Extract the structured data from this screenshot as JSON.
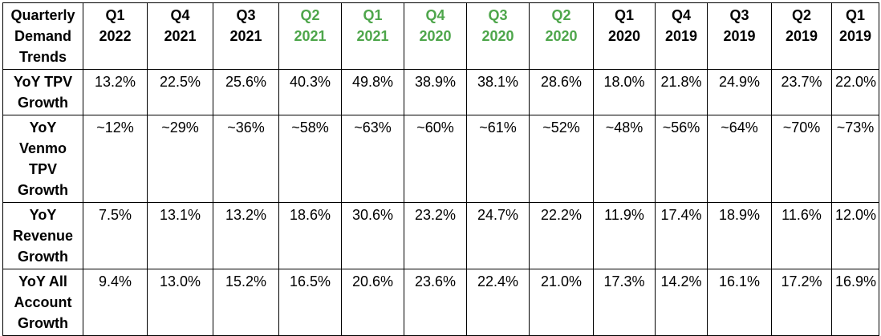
{
  "table": {
    "corner_label": "Quarterly\nDemand\nTrends",
    "columns": [
      {
        "label": "Q1\n2022",
        "highlight": false
      },
      {
        "label": "Q4\n2021",
        "highlight": false
      },
      {
        "label": "Q3\n2021",
        "highlight": false
      },
      {
        "label": "Q2\n2021",
        "highlight": true
      },
      {
        "label": "Q1\n2021",
        "highlight": true
      },
      {
        "label": "Q4\n2020",
        "highlight": true
      },
      {
        "label": "Q3\n2020",
        "highlight": true
      },
      {
        "label": "Q2\n2020",
        "highlight": true
      },
      {
        "label": "Q1\n2020",
        "highlight": false
      },
      {
        "label": "Q4\n2019",
        "highlight": false
      },
      {
        "label": "Q3\n2019",
        "highlight": false
      },
      {
        "label": "Q2\n2019",
        "highlight": false
      },
      {
        "label": "Q1\n2019",
        "highlight": false
      }
    ],
    "highlight_color": "#4ea64b",
    "rows": [
      {
        "label": "YoY TPV\nGrowth",
        "values": [
          "13.2%",
          "22.5%",
          "25.6%",
          "40.3%",
          "49.8%",
          "38.9%",
          "38.1%",
          "28.6%",
          "18.0%",
          "21.8%",
          "24.9%",
          "23.7%",
          "22.0%"
        ]
      },
      {
        "label": "YoY\nVenmo\nTPV\nGrowth",
        "values": [
          "~12%",
          "~29%",
          "~36%",
          "~58%",
          "~63%",
          "~60%",
          "~61%",
          "~52%",
          "~48%",
          "~56%",
          "~64%",
          "~70%",
          "~73%"
        ]
      },
      {
        "label": "YoY\nRevenue\nGrowth",
        "values": [
          "7.5%",
          "13.1%",
          "13.2%",
          "18.6%",
          "30.6%",
          "23.2%",
          "24.7%",
          "22.2%",
          "11.9%",
          "17.4%",
          "18.9%",
          "11.6%",
          "12.0%"
        ]
      },
      {
        "label": "YoY All\nAccount\nGrowth",
        "values": [
          "9.4%",
          "13.0%",
          "15.2%",
          "16.5%",
          "20.6%",
          "23.6%",
          "22.4%",
          "21.0%",
          "17.3%",
          "14.2%",
          "16.1%",
          "17.2%",
          "16.9%"
        ]
      }
    ]
  }
}
